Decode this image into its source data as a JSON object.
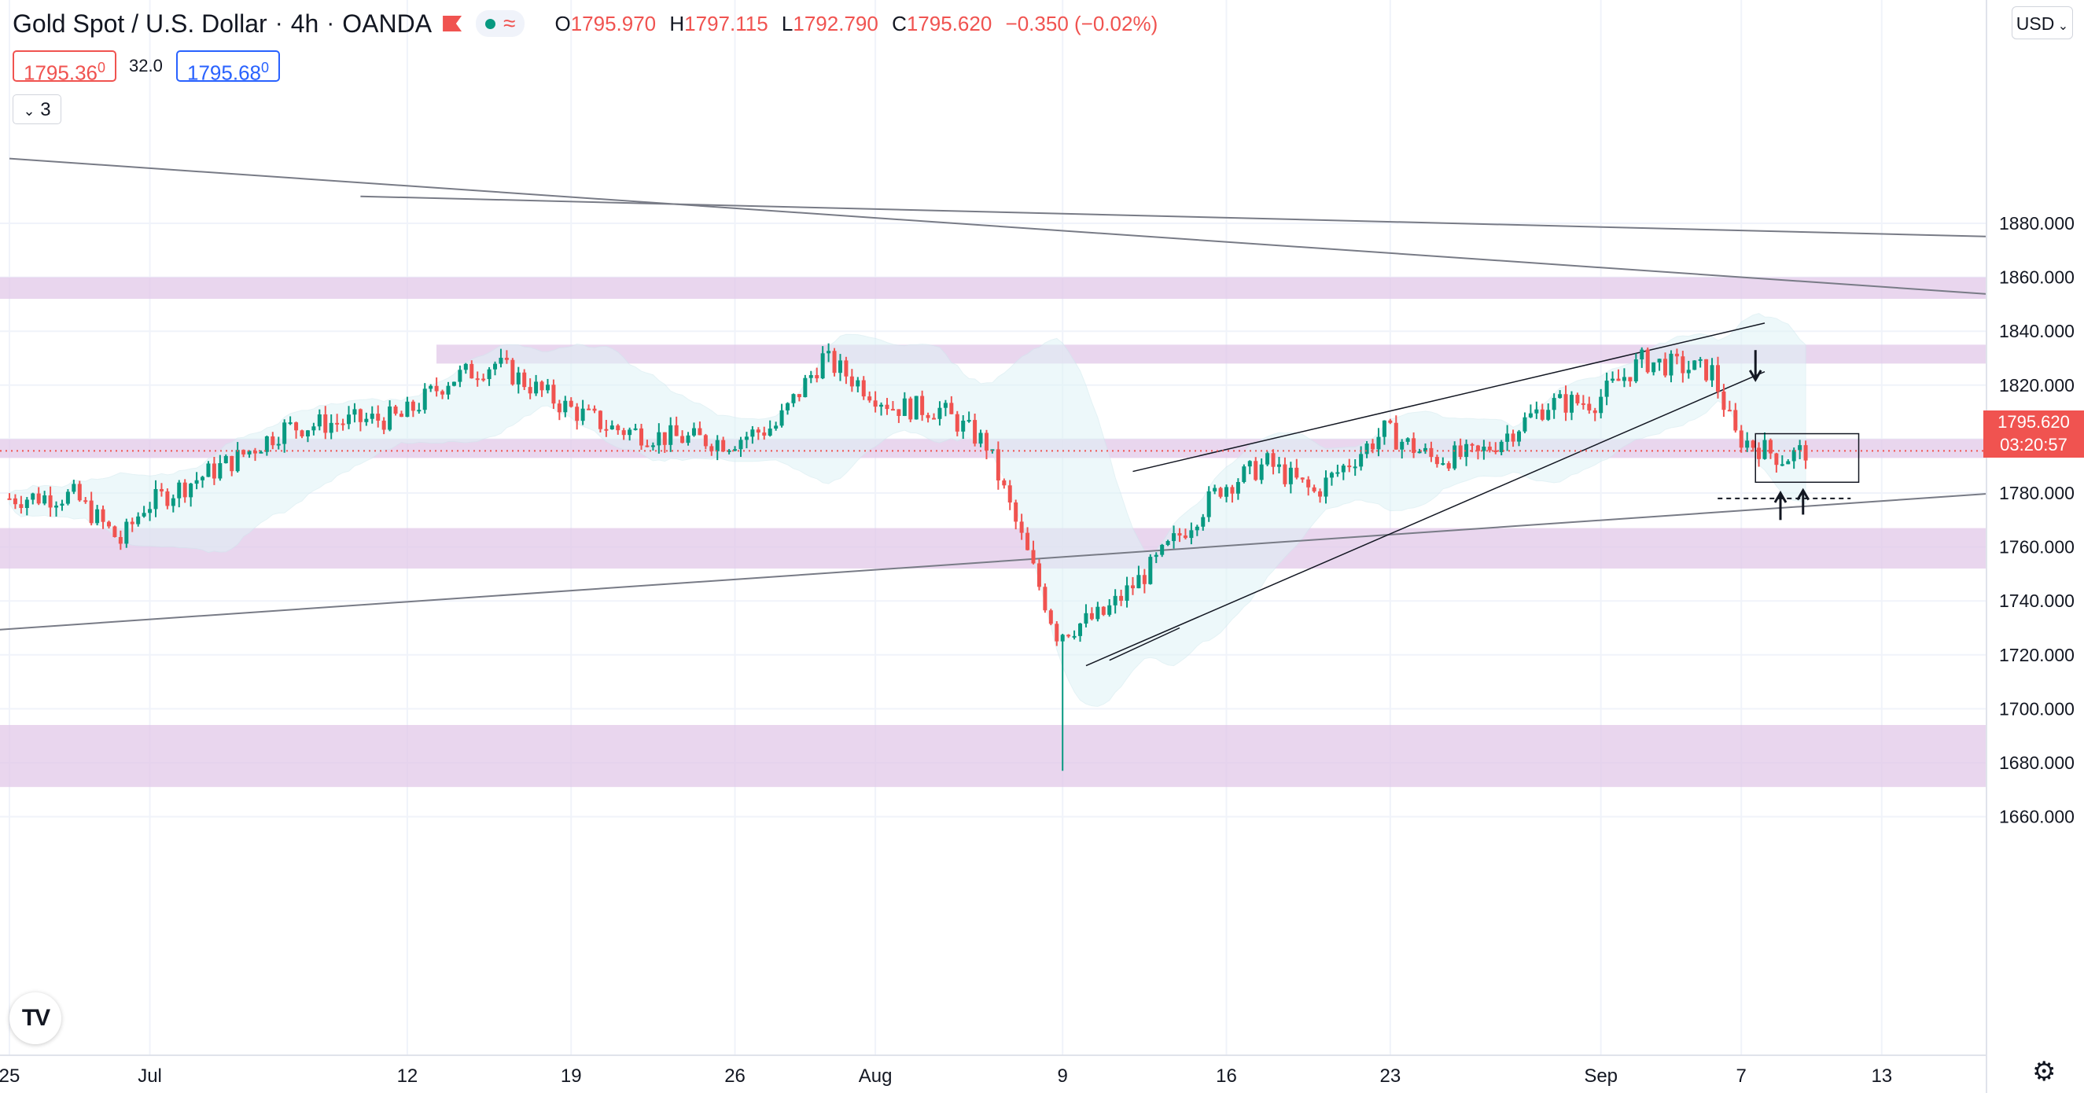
{
  "legend": {
    "symbol": "Gold Spot / U.S. Dollar",
    "interval": "4h",
    "exchange": "OANDA",
    "open_label": "O",
    "open": "1795.970",
    "high_label": "H",
    "high": "1797.115",
    "low_label": "L",
    "low": "1792.790",
    "close_label": "C",
    "close": "1795.620",
    "change": "−0.350 (−0.02%)"
  },
  "quote": {
    "bid": "1795.36",
    "bid_sup": "0",
    "spread": "32.0",
    "ask": "1795.68",
    "ask_sup": "0"
  },
  "indicators_toggle": {
    "count": "3"
  },
  "currency": "USD",
  "last_price": {
    "price": "1795.620",
    "countdown": "03:20:57"
  },
  "colors": {
    "up": "#089981",
    "down": "#f05350",
    "zone": "#e1c8e8",
    "band": "#dff3f6",
    "accent": "#2962ff"
  },
  "icons": [
    "tradingview-logo-icon",
    "settings-gear-icon",
    "chevron-down-icon",
    "flag-icon",
    "market-open-icon"
  ],
  "chart_data": {
    "type": "candlestick",
    "title": "Gold Spot / U.S. Dollar, 4h, OANDA",
    "y_ticks": [
      "1660.000",
      "1680.000",
      "1700.000",
      "1720.000",
      "1740.000",
      "1760.000",
      "1780.000",
      "1800.000",
      "1820.000",
      "1840.000",
      "1860.000",
      "1880.000"
    ],
    "x_ticks": [
      "25",
      "Jul",
      "12",
      "19",
      "26",
      "Aug",
      "9",
      "16",
      "23",
      "Sep",
      "7",
      "13"
    ],
    "ylim": [
      1655,
      1882
    ],
    "support_resistance_zones": [
      [
        1852,
        1860
      ],
      [
        1828,
        1835
      ],
      [
        1793,
        1800
      ],
      [
        1752,
        1767
      ],
      [
        1671,
        1694
      ]
    ],
    "trend": [
      {
        "date": "2021-06-25",
        "close": 1778
      },
      {
        "date": "2021-06-28",
        "close": 1779
      },
      {
        "date": "2021-06-30",
        "close": 1762
      },
      {
        "date": "2021-07-01",
        "close": 1775
      },
      {
        "date": "2021-07-05",
        "close": 1793
      },
      {
        "date": "2021-07-07",
        "close": 1804
      },
      {
        "date": "2021-07-09",
        "close": 1806
      },
      {
        "date": "2021-07-12",
        "close": 1808
      },
      {
        "date": "2021-07-14",
        "close": 1822
      },
      {
        "date": "2021-07-16",
        "close": 1828
      },
      {
        "date": "2021-07-19",
        "close": 1812
      },
      {
        "date": "2021-07-21",
        "close": 1804
      },
      {
        "date": "2021-07-23",
        "close": 1801
      },
      {
        "date": "2021-07-26",
        "close": 1799
      },
      {
        "date": "2021-07-28",
        "close": 1805
      },
      {
        "date": "2021-07-30",
        "close": 1830
      },
      {
        "date": "2021-08-02",
        "close": 1812
      },
      {
        "date": "2021-08-04",
        "close": 1811
      },
      {
        "date": "2021-08-06",
        "close": 1798
      },
      {
        "date": "2021-08-09",
        "close": 1728
      },
      {
        "date": "2021-08-11",
        "close": 1735
      },
      {
        "date": "2021-08-13",
        "close": 1752
      },
      {
        "date": "2021-08-16",
        "close": 1782
      },
      {
        "date": "2021-08-18",
        "close": 1791
      },
      {
        "date": "2021-08-20",
        "close": 1780
      },
      {
        "date": "2021-08-23",
        "close": 1803
      },
      {
        "date": "2021-08-25",
        "close": 1793
      },
      {
        "date": "2021-08-27",
        "close": 1794
      },
      {
        "date": "2021-08-30",
        "close": 1813
      },
      {
        "date": "2021-09-01",
        "close": 1814
      },
      {
        "date": "2021-09-03",
        "close": 1829
      },
      {
        "date": "2021-09-06",
        "close": 1825
      },
      {
        "date": "2021-09-07",
        "close": 1801
      },
      {
        "date": "2021-09-09",
        "close": 1793
      },
      {
        "date": "2021-09-10",
        "close": 1795.62
      }
    ],
    "annotations": [
      {
        "type": "consolidation_box",
        "price_range": [
          1784,
          1802
        ]
      },
      {
        "type": "arrow_down",
        "price": 1823
      },
      {
        "type": "arrow_up",
        "price": 1775
      },
      {
        "type": "arrow_up",
        "price": 1778
      },
      {
        "type": "dashed_level",
        "price": 1778
      }
    ]
  }
}
